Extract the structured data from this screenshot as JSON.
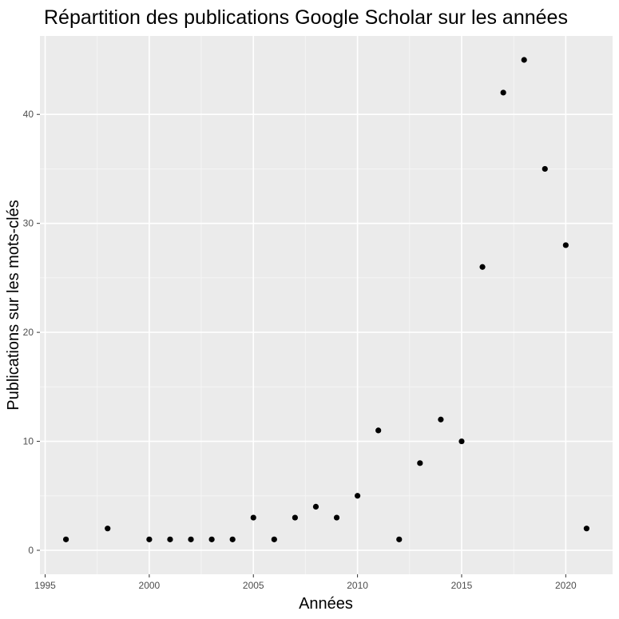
{
  "chart_data": {
    "type": "scatter",
    "title": "Répartition des publications Google Scholar sur les années",
    "xlabel": "Années",
    "ylabel": "Publications sur les mots-clés",
    "x": [
      1996,
      1998,
      2000,
      2001,
      2002,
      2003,
      2004,
      2005,
      2006,
      2007,
      2008,
      2009,
      2010,
      2011,
      2012,
      2013,
      2014,
      2015,
      2016,
      2017,
      2018,
      2019,
      2020,
      2021
    ],
    "y": [
      1,
      2,
      1,
      1,
      1,
      1,
      1,
      3,
      1,
      3,
      4,
      3,
      5,
      11,
      1,
      8,
      12,
      10,
      26,
      42,
      45,
      35,
      28,
      2
    ],
    "xlim": [
      1994.75,
      2022.25
    ],
    "ylim": [
      -2.2,
      47.2
    ],
    "x_ticks": [
      1995,
      2000,
      2005,
      2010,
      2015,
      2020
    ],
    "x_tick_labels": [
      "1995",
      "2000",
      "2005",
      "2010",
      "2015",
      "2020"
    ],
    "y_ticks": [
      0,
      10,
      20,
      30,
      40
    ],
    "y_tick_labels": [
      "0",
      "10",
      "20",
      "30",
      "40"
    ],
    "grid": true,
    "legend": "none",
    "colors": {
      "panel_background": "#ebebeb",
      "grid_major": "#ffffff",
      "grid_minor": "#f5f5f5",
      "point": "#000000",
      "tick_text": "#4d4d4d",
      "tick_mark": "#333333"
    }
  }
}
